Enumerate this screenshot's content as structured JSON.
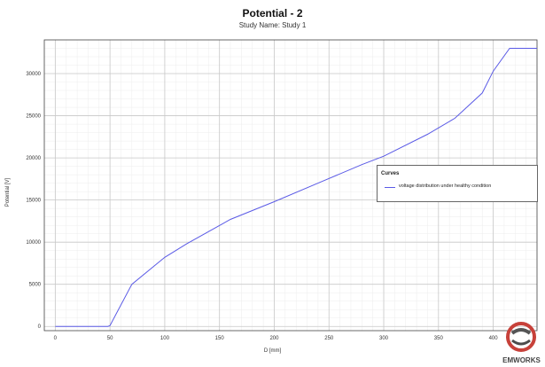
{
  "chart_data": {
    "type": "line",
    "title": "Potential - 2",
    "subtitle": "Study Name: Study 1",
    "xlabel": "D [mm]",
    "ylabel": "Potential [V]",
    "xlim": [
      -10,
      440
    ],
    "ylim": [
      -500,
      34000
    ],
    "xticks": [
      0,
      50,
      100,
      150,
      200,
      250,
      300,
      350,
      400
    ],
    "yticks": [
      0,
      5000,
      10000,
      15000,
      20000,
      25000,
      30000
    ],
    "grid": true,
    "legend_title": "Curves",
    "legend_position": "right",
    "series": [
      {
        "name": "voltage distribution under healthy condition",
        "color": "#5a5ae6",
        "x": [
          0,
          48,
          50,
          70,
          100,
          120,
          160,
          200,
          240,
          280,
          300,
          340,
          365,
          390,
          400,
          415,
          440
        ],
        "y": [
          0,
          0,
          100,
          5000,
          8200,
          9800,
          12700,
          14800,
          17000,
          19200,
          20200,
          22800,
          24700,
          27700,
          30300,
          33000,
          33000
        ]
      }
    ]
  },
  "watermark": "EMWORKS"
}
